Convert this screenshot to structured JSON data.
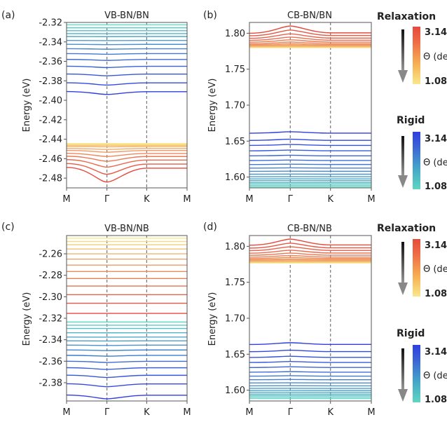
{
  "chart_data": [
    {
      "type": "line",
      "panel_label": "(a)",
      "title": "VB-BN/BN",
      "ylabel": "Energy (eV)",
      "ylim": [
        -2.49,
        -2.32
      ],
      "yticks": [
        "-2.32",
        "-2.34",
        "-2.36",
        "-2.38",
        "-2.40",
        "-2.42",
        "-2.44",
        "-2.46",
        "-2.48"
      ],
      "xticks": [
        "M",
        "Γ",
        "K",
        "M"
      ],
      "series": [
        {
          "group": "rigid",
          "band_energies_at_M": [
            -2.3225,
            -2.3255,
            -2.3285,
            -2.3315,
            -2.3345,
            -2.3385,
            -2.3425,
            -2.347,
            -2.352,
            -2.358,
            -2.365,
            -2.373,
            -2.382,
            -2.391
          ],
          "gamma_dip_deepest": -2.394
        },
        {
          "group": "relaxation",
          "band_energies_at_M": [
            -2.4445,
            -2.4455,
            -2.4465,
            -2.4475,
            -2.4495,
            -2.4515,
            -2.4545,
            -2.4575,
            -2.461,
            -2.465,
            -2.469
          ],
          "gamma_dip_deepest": -2.484
        }
      ]
    },
    {
      "type": "line",
      "panel_label": "(b)",
      "title": "CB-BN/BN",
      "ylabel": "Energy (eV)",
      "ylim": [
        1.585,
        1.815
      ],
      "yticks": [
        "1.80",
        "1.75",
        "1.70",
        "1.65",
        "1.60"
      ],
      "xticks": [
        "M",
        "Γ",
        "K",
        "M"
      ],
      "series": [
        {
          "group": "relaxation",
          "band_energies_at_M": [
            1.78,
            1.7805,
            1.781,
            1.7815,
            1.782,
            1.7825,
            1.783,
            1.784,
            1.7855,
            1.7875,
            1.79,
            1.793,
            1.7965,
            1.8
          ],
          "gamma_peak_highest": 1.81
        },
        {
          "group": "rigid",
          "band_energies_at_M": [
            1.5865,
            1.5885,
            1.5905,
            1.5925,
            1.595,
            1.5975,
            1.6005,
            1.604,
            1.608,
            1.6125,
            1.6175,
            1.623,
            1.6295,
            1.6365,
            1.644,
            1.651,
            1.661
          ],
          "gamma_peak_highest": 1.663
        }
      ]
    },
    {
      "type": "line",
      "panel_label": "(c)",
      "title": "VB-BN/NB",
      "ylabel": "Energy (eV)",
      "ylim": [
        -2.397,
        -2.243
      ],
      "yticks": [
        "-2.26",
        "-2.28",
        "-2.30",
        "-2.32",
        "-2.34",
        "-2.36",
        "-2.38"
      ],
      "xticks": [
        "M",
        "Γ",
        "K",
        "M"
      ],
      "series": [
        {
          "group": "relaxation",
          "band_energies_at_M": [
            -2.2455,
            -2.2485,
            -2.2515,
            -2.2555,
            -2.26,
            -2.265,
            -2.2705,
            -2.2765,
            -2.283,
            -2.29,
            -2.298,
            -2.306,
            -2.3155
          ],
          "gamma_marker": -2.342
        },
        {
          "group": "rigid",
          "band_energies_at_M": [
            -2.3235,
            -2.3265,
            -2.3295,
            -2.3335,
            -2.3375,
            -2.341,
            -2.345,
            -2.3495,
            -2.3545,
            -2.36,
            -2.366,
            -2.373,
            -2.381,
            -2.3915
          ],
          "gamma_dip_deepest": -2.395
        }
      ]
    },
    {
      "type": "line",
      "panel_label": "(d)",
      "title": "CB-BN/NB",
      "ylabel": "Energy (eV)",
      "ylim": [
        1.585,
        1.815
      ],
      "yticks": [
        "1.80",
        "1.75",
        "1.70",
        "1.65",
        "1.60"
      ],
      "xticks": [
        "M",
        "Γ",
        "K",
        "M"
      ],
      "series": [
        {
          "group": "relaxation",
          "band_energies_at_M": [
            1.777,
            1.7775,
            1.778,
            1.7785,
            1.779,
            1.7795,
            1.7805,
            1.7815,
            1.783,
            1.785,
            1.7875,
            1.7905,
            1.794,
            1.7975,
            1.8015
          ],
          "gamma_peak_highest": 1.81
        },
        {
          "group": "rigid",
          "band_energies_at_M": [
            1.5885,
            1.5905,
            1.5925,
            1.5945,
            1.597,
            1.5995,
            1.6025,
            1.606,
            1.61,
            1.6145,
            1.6195,
            1.625,
            1.6315,
            1.6385,
            1.6455,
            1.6535,
            1.6635
          ],
          "gamma_peak_highest": 1.666
        }
      ]
    }
  ],
  "colorbars": [
    {
      "title": "Relaxation",
      "max_label": "3.14",
      "min_label": "1.08",
      "variable": "Θ (deg)",
      "colors": [
        "#f9e88a",
        "#f6b052",
        "#ee6a45",
        "#e64a3d"
      ]
    },
    {
      "title": "Rigid",
      "max_label": "3.14",
      "min_label": "1.08",
      "variable": "Θ (deg)",
      "colors": [
        "#5fd6c2",
        "#45a8c8",
        "#3a62d6",
        "#2f3fe0"
      ]
    },
    {
      "title": "Relaxation",
      "max_label": "3.14",
      "min_label": "1.08",
      "variable": "Θ (deg)",
      "colors": [
        "#f9e88a",
        "#f6b052",
        "#ee6a45",
        "#e64a3d"
      ]
    },
    {
      "title": "Rigid",
      "max_label": "3.14",
      "min_label": "1.08",
      "variable": "Θ (deg)",
      "colors": [
        "#5fd6c2",
        "#45a8c8",
        "#3a62d6",
        "#2f3fe0"
      ]
    }
  ],
  "colors": {
    "rigid_low": "#5fd6c2",
    "rigid_high": "#2f3fe0",
    "relax_low": "#f9e88a",
    "relax_high": "#e64a3d",
    "axis": "#555555",
    "gamma_k_guides": "#777777"
  }
}
